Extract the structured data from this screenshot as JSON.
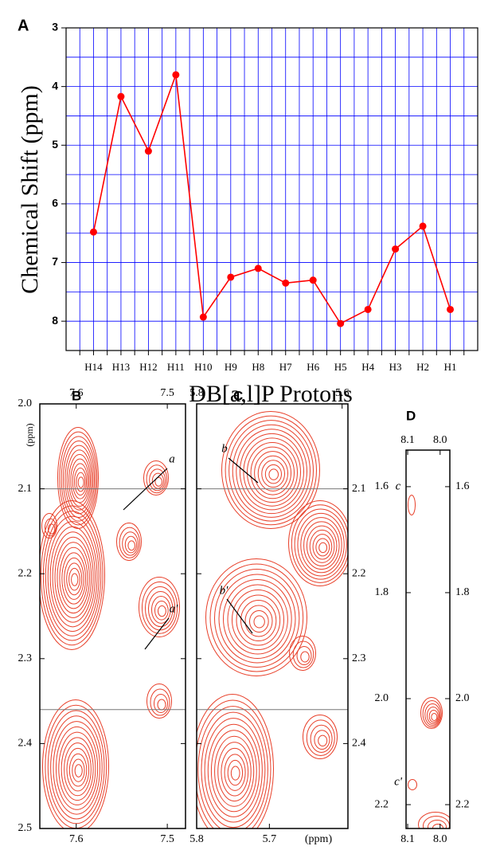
{
  "chart_data": [
    {
      "type": "line",
      "label": "A",
      "xlabel": "DB[a,l]P Protons",
      "ylabel": "Chemical Shift (ppm)",
      "categories": [
        "H14",
        "H13",
        "H12",
        "H11",
        "H10",
        "H9",
        "H8",
        "H7",
        "H6",
        "H5",
        "H4",
        "H3",
        "H2",
        "H1"
      ],
      "values": [
        6.48,
        4.17,
        5.1,
        3.8,
        7.93,
        7.25,
        7.1,
        7.35,
        7.3,
        8.04,
        7.8,
        6.77,
        6.38,
        7.8
      ],
      "color": "#ff0000",
      "ylim": [
        3,
        8.5
      ],
      "y_inverted": true,
      "yticks": [
        3,
        4,
        5,
        6,
        7,
        8
      ],
      "y_minor_ticks": [
        3.5,
        4.5,
        5.5,
        6.5,
        7.5
      ],
      "grid": true,
      "grid_color": "#0000ff"
    },
    {
      "type": "contour",
      "label": "B",
      "ylabel": "(ppm)",
      "color": "#e8402a",
      "xlim": [
        7.64,
        7.48
      ],
      "xticks_top": [
        7.6,
        7.5
      ],
      "xticks_bottom": [
        7.6,
        7.5
      ],
      "ylim": [
        2,
        2.5
      ],
      "yticks": [
        {
          "value": 2,
          "label": "2.0"
        },
        2.1,
        2.2,
        2.3,
        2.4,
        2.5
      ],
      "reference_lines": [
        2.1,
        2.36
      ],
      "annotations": [
        "a",
        "a'"
      ]
    },
    {
      "type": "contour",
      "label": "C",
      "xlabel": "(ppm)",
      "color": "#e8402a",
      "xlim": [
        5.8,
        5.592
      ],
      "xticks_top": [
        5.8,
        5.6
      ],
      "xticks_bottom": [
        5.8,
        5.7
      ],
      "ylim": [
        2,
        2.5
      ],
      "yticks": [
        2.1,
        2.2,
        2.3,
        2.4
      ],
      "reference_lines": [
        2.1,
        2.36
      ],
      "annotations": [
        "b",
        "b'"
      ]
    },
    {
      "type": "contour",
      "label": "D",
      "color": "#e8402a",
      "xlim": [
        8.105,
        7.97
      ],
      "xticks_top": [
        8.1,
        {
          "value": 8,
          "label": "8.0"
        }
      ],
      "xticks_bottom": [
        8.1,
        {
          "value": 8,
          "label": "8.0"
        }
      ],
      "ylim": [
        1.531,
        2.245
      ],
      "yticks": [
        1.6,
        1.8,
        {
          "value": 2,
          "label": "2.0"
        },
        2.2
      ],
      "annotations": [
        "c",
        "c'"
      ]
    }
  ]
}
